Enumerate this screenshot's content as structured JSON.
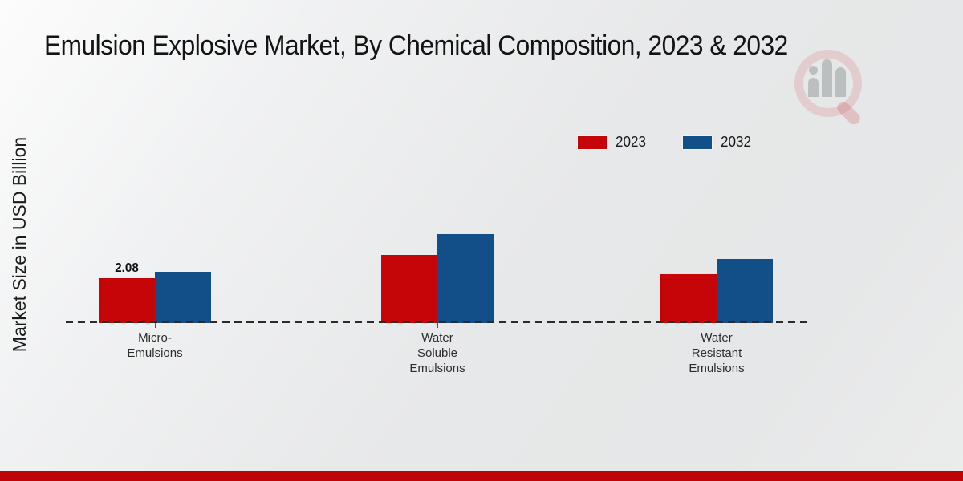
{
  "title": "Emulsion Explosive Market, By Chemical Composition, 2023 & 2032",
  "y_axis_label": "Market Size in USD Billion",
  "legend": {
    "items": [
      {
        "label": "2023",
        "color": "#c60508"
      },
      {
        "label": "2032",
        "color": "#124f88"
      }
    ]
  },
  "colors": {
    "series_2023": "#c60508",
    "series_2032": "#124f88",
    "footer_bar": "#bf0408",
    "baseline": "#2b2b2b"
  },
  "watermark": "market-research-logo",
  "chart_data": {
    "type": "bar",
    "title": "Emulsion Explosive Market, By Chemical Composition, 2023 & 2032",
    "xlabel": "",
    "ylabel": "Market Size in USD Billion",
    "categories": [
      "Micro-\nEmulsions",
      "Water\nSoluble\nEmulsions",
      "Water\nResistant\nEmulsions"
    ],
    "series": [
      {
        "name": "2023",
        "color": "#c60508",
        "values": [
          2.08,
          3.15,
          2.27
        ]
      },
      {
        "name": "2032",
        "color": "#124f88",
        "values": [
          2.38,
          4.12,
          2.97
        ]
      }
    ],
    "annotations": [
      {
        "text": "2.08",
        "series_index": 0,
        "category_index": 0
      }
    ],
    "ylim": [
      0,
      7.5
    ],
    "grid": false,
    "axis_style": "dashed-baseline-only",
    "legend_position": "upper-right"
  }
}
